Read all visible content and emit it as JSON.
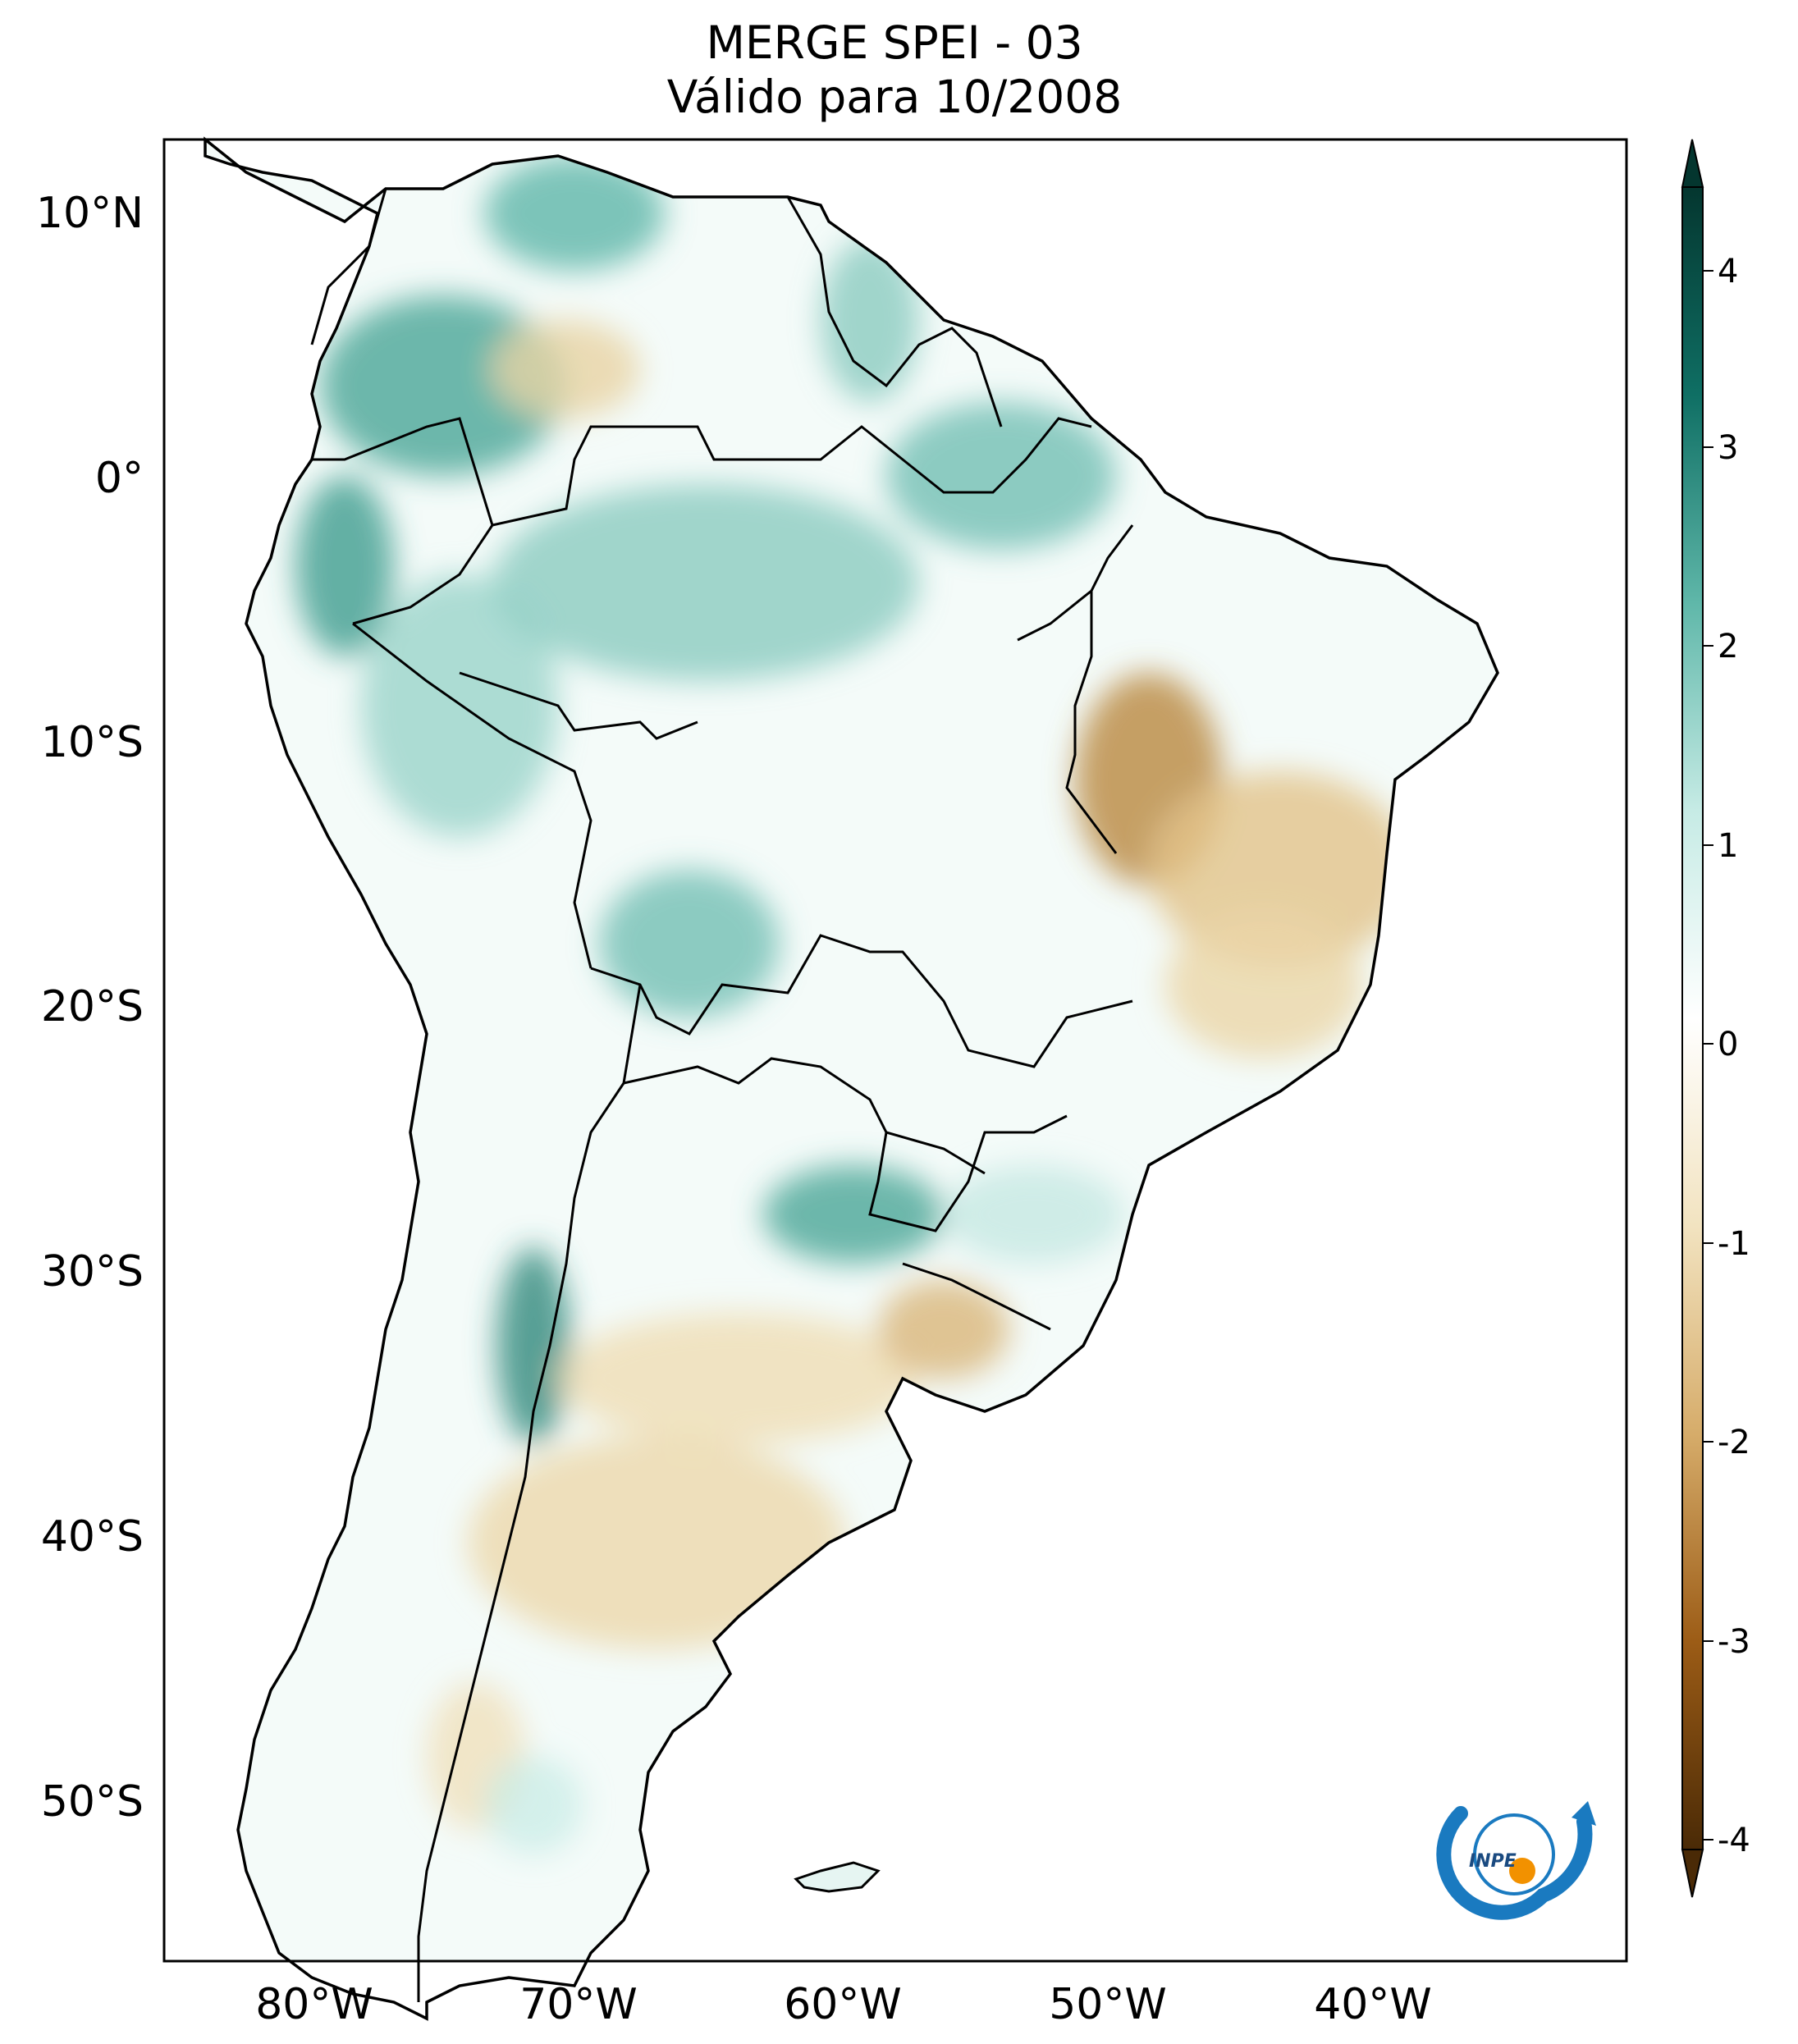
{
  "title": {
    "line1": "MERGE   SPEI - 03",
    "line2": "Válido para 10/2008"
  },
  "axes": {
    "lon_labels": [
      "80°W",
      "70°W",
      "60°W",
      "50°W",
      "40°W"
    ],
    "lat_labels": [
      "10°N",
      "0°",
      "10°S",
      "20°S",
      "30°S",
      "40°S",
      "50°S"
    ]
  },
  "colorbar": {
    "labels": [
      "4",
      "3",
      "2",
      "1",
      "0",
      "-1",
      "-2",
      "-3",
      "-4"
    ],
    "colors": [
      "#04362f",
      "#0f6f64",
      "#5fb7a9",
      "#c6ebe5",
      "#ffffff",
      "#f2e3c0",
      "#d6ac6a",
      "#9c5c16",
      "#4a2a06"
    ]
  },
  "logo": {
    "text": "INPE"
  }
}
